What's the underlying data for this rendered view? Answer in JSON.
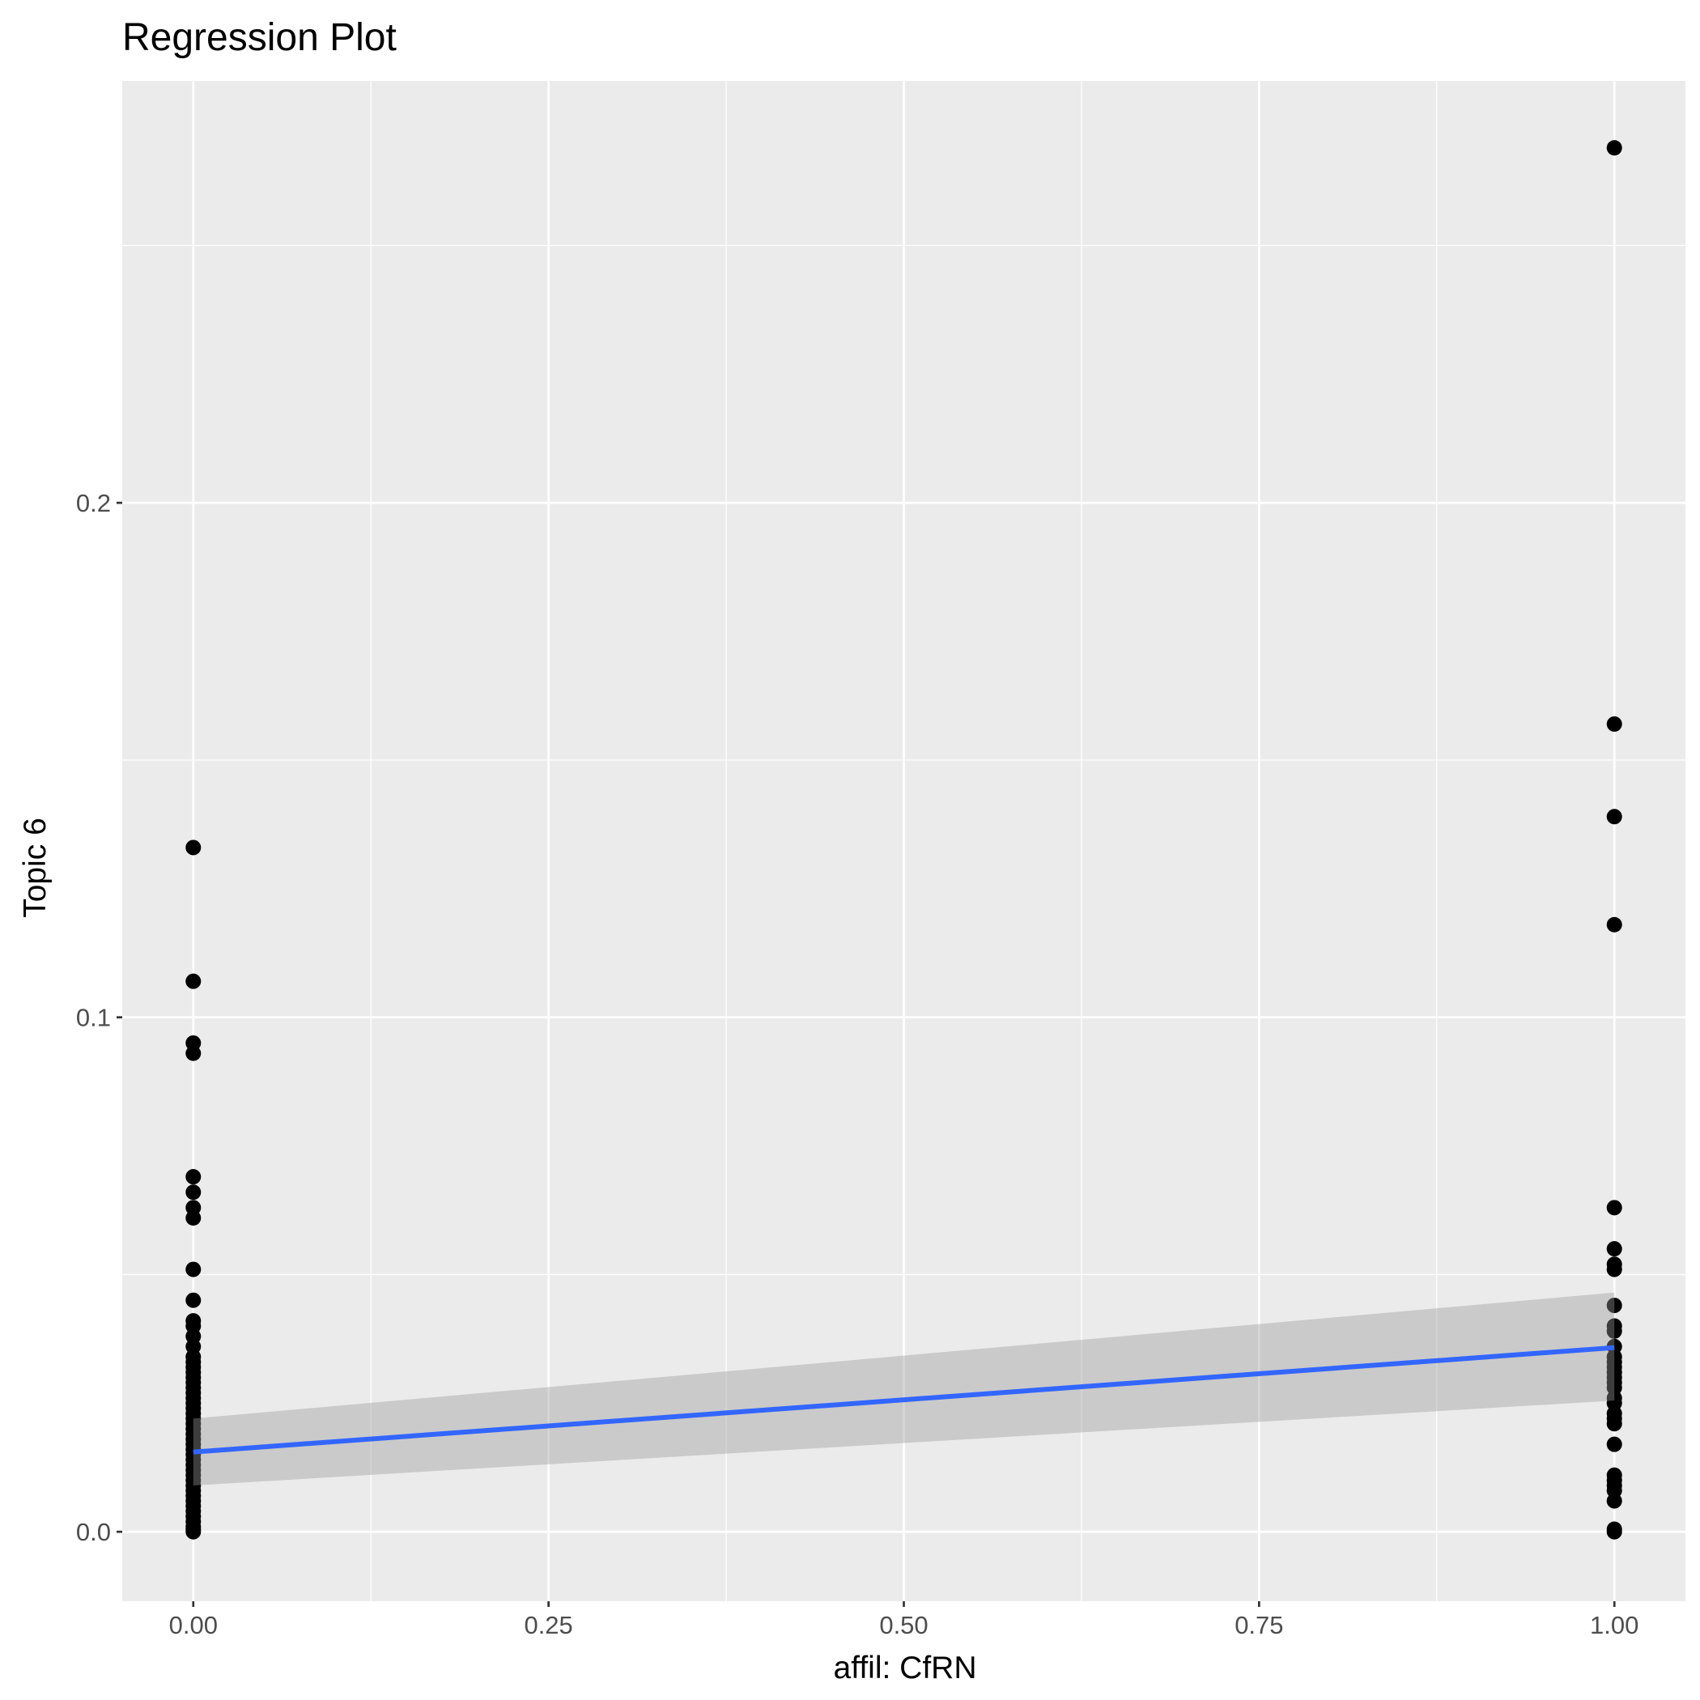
{
  "chart_data": {
    "type": "scatter",
    "title": "Regression Plot",
    "xlabel": "affil: CfRN",
    "ylabel": "Topic 6",
    "xlim": [
      -0.05,
      1.05
    ],
    "ylim": [
      -0.0135,
      0.282
    ],
    "x_ticks": [
      {
        "value": 0.0,
        "label": "0.00"
      },
      {
        "value": 0.25,
        "label": "0.25"
      },
      {
        "value": 0.5,
        "label": "0.50"
      },
      {
        "value": 0.75,
        "label": "0.75"
      },
      {
        "value": 1.0,
        "label": "1.00"
      }
    ],
    "y_ticks": [
      {
        "value": 0.0,
        "label": "0.0"
      },
      {
        "value": 0.1,
        "label": "0.1"
      },
      {
        "value": 0.2,
        "label": "0.2"
      }
    ],
    "grid": true,
    "points": {
      "color": "#000000",
      "series": [
        {
          "x": 0,
          "values": [
            0.133,
            0.107,
            0.095,
            0.093,
            0.069,
            0.066,
            0.063,
            0.061,
            0.051,
            0.045,
            0.041,
            0.04,
            0.038,
            0.036,
            0.034,
            0.033,
            0.032,
            0.031,
            0.03,
            0.029,
            0.028,
            0.027,
            0.026,
            0.025,
            0.024,
            0.023,
            0.022,
            0.021,
            0.02,
            0.019,
            0.018,
            0.017,
            0.016,
            0.015,
            0.014,
            0.013,
            0.012,
            0.011,
            0.01,
            0.009,
            0.008,
            0.007,
            0.006,
            0.005,
            0.004,
            0.003,
            0.002,
            0.001,
            0.0005,
            0.0
          ]
        },
        {
          "x": 1,
          "values": [
            0.269,
            0.157,
            0.139,
            0.118,
            0.063,
            0.055,
            0.052,
            0.051,
            0.044,
            0.04,
            0.039,
            0.036,
            0.034,
            0.033,
            0.032,
            0.031,
            0.03,
            0.029,
            0.028,
            0.026,
            0.025,
            0.023,
            0.022,
            0.021,
            0.017,
            0.011,
            0.01,
            0.009,
            0.008,
            0.006,
            0.0005,
            0.0
          ]
        }
      ]
    },
    "regression": {
      "color": "#3366FF",
      "x": [
        0,
        1
      ],
      "fit": [
        0.0155,
        0.0358
      ],
      "ci_lower": [
        0.009,
        0.0255
      ],
      "ci_upper": [
        0.022,
        0.0465
      ],
      "ci_fill": "#999999"
    },
    "colors": {
      "panel_background": "#EBEBEB",
      "grid_major": "#FFFFFF",
      "grid_minor": "#FFFFFF",
      "tick": "#333333"
    }
  }
}
